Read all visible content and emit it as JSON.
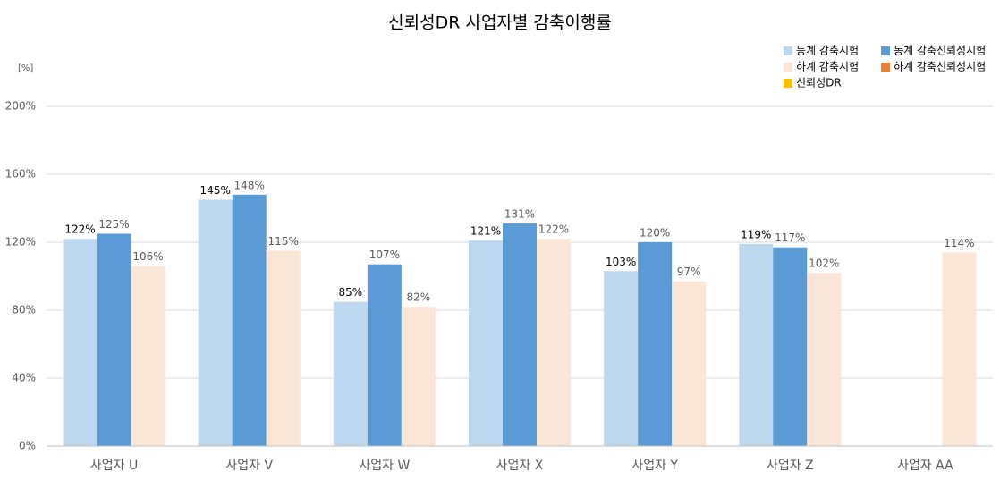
{
  "chart_data": {
    "type": "bar",
    "title": "신뢰성DR 사업자별 감축이행률",
    "y_unit_label": "[%]",
    "categories": [
      "사업자 U",
      "사업자 V",
      "사업자 W",
      "사업자 X",
      "사업자 Y",
      "사업자 Z",
      "사업자 AA"
    ],
    "series": [
      {
        "name": "동계 감축시험",
        "color": "#bdd7ee",
        "label_color": "#000000",
        "values": [
          122,
          145,
          85,
          121,
          103,
          119,
          null
        ],
        "value_labels": [
          "122%",
          "145%",
          "85%",
          "121%",
          "103%",
          "119%",
          null
        ]
      },
      {
        "name": "동계 감축신뢰성시험",
        "color": "#5b9bd5",
        "label_color": "#595959",
        "values": [
          125,
          148,
          107,
          131,
          120,
          117,
          null
        ],
        "value_labels": [
          "125%",
          "148%",
          "107%",
          "131%",
          "120%",
          "117%",
          null
        ]
      },
      {
        "name": "하계 감축시험",
        "color": "#fbe5d6",
        "label_color": "#595959",
        "values": [
          106,
          115,
          82,
          122,
          97,
          102,
          114
        ],
        "value_labels": [
          "106%",
          "115%",
          "82%",
          "122%",
          "97%",
          "102%",
          "114%"
        ]
      },
      {
        "name": "하계 감축신뢰성시험",
        "color": "#ed7d31",
        "label_color": "#595959",
        "values": [
          null,
          null,
          null,
          null,
          null,
          null,
          null
        ]
      },
      {
        "name": "신뢰성DR",
        "color": "#ffc000",
        "label_color": "#595959",
        "values": [
          null,
          null,
          null,
          null,
          null,
          null,
          null
        ]
      }
    ],
    "ylim": [
      0,
      200
    ],
    "yticks": [
      {
        "value": 0,
        "label": "0%"
      },
      {
        "value": 40,
        "label": "40%"
      },
      {
        "value": 80,
        "label": "80%"
      },
      {
        "value": 120,
        "label": "120%"
      },
      {
        "value": 160,
        "label": "160%"
      },
      {
        "value": 200,
        "label": "200%"
      }
    ],
    "grid": true,
    "legend": "top-right"
  }
}
